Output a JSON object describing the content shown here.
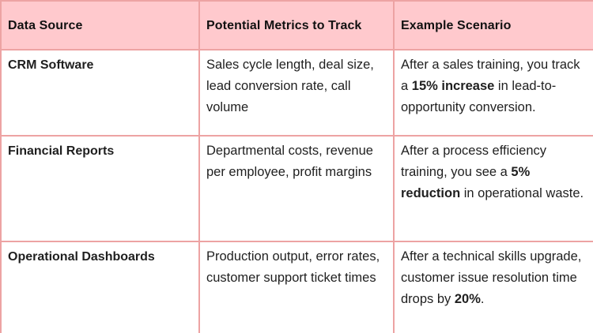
{
  "colors": {
    "header_bg": "#ffc9cd",
    "border": "#eda3a3",
    "header_text": "#111111",
    "body_text": "#1f1f1f",
    "cell_bg": "#ffffff"
  },
  "table": {
    "headers": [
      "Data Source",
      "Potential Metrics to Track",
      "Example Scenario"
    ],
    "rows": [
      {
        "source": "CRM Software",
        "metrics": "Sales cycle length, deal size, lead conversion rate, call volume",
        "scenario": [
          {
            "text": "After a sales training, you track a ",
            "bold": false
          },
          {
            "text": "15% increase",
            "bold": true
          },
          {
            "text": " in lead-to-opportunity conversion.",
            "bold": false
          }
        ]
      },
      {
        "source": "Financial Reports",
        "metrics": "Departmental costs, revenue per employee, profit margins",
        "scenario": [
          {
            "text": "After a process efficiency training, you see a ",
            "bold": false
          },
          {
            "text": "5% reduction",
            "bold": true
          },
          {
            "text": " in operational waste.",
            "bold": false
          }
        ]
      },
      {
        "source": "Operational Dashboards",
        "metrics": "Production output, error rates, customer support ticket times",
        "scenario": [
          {
            "text": "After a technical skills upgrade, customer issue resolution time drops by ",
            "bold": false
          },
          {
            "text": "20%",
            "bold": true
          },
          {
            "text": ".",
            "bold": false
          }
        ]
      }
    ]
  }
}
